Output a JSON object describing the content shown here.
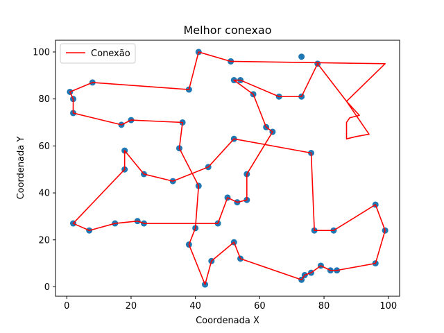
{
  "chart_data": {
    "type": "line",
    "title": "Melhor conexao",
    "xlabel": "Coordenada X",
    "ylabel": "Coordenada Y",
    "xlim": [
      -3.5,
      103.5
    ],
    "ylim": [
      -4,
      105
    ],
    "xticks": [
      0,
      20,
      40,
      60,
      80,
      100
    ],
    "yticks": [
      0,
      20,
      40,
      60,
      80,
      100
    ],
    "grid": false,
    "legend": {
      "placement": "top-left",
      "entries": [
        "Conexão"
      ]
    },
    "colors": {
      "line": "#ff0000",
      "points": "#1f77b4"
    },
    "points": [
      [
        51,
        96
      ],
      [
        41,
        100
      ],
      [
        38,
        84
      ],
      [
        8,
        87
      ],
      [
        1,
        83
      ],
      [
        2,
        80
      ],
      [
        2,
        74
      ],
      [
        17,
        69
      ],
      [
        20,
        71
      ],
      [
        36,
        70
      ],
      [
        35,
        59
      ],
      [
        41,
        43
      ],
      [
        40,
        25
      ],
      [
        38,
        18
      ],
      [
        43,
        1
      ],
      [
        45,
        11
      ],
      [
        52,
        19
      ],
      [
        54,
        12
      ],
      [
        73,
        3
      ],
      [
        74,
        5
      ],
      [
        76,
        6
      ],
      [
        79,
        9
      ],
      [
        82,
        7
      ],
      [
        84,
        7
      ],
      [
        96,
        10
      ],
      [
        99,
        24
      ],
      [
        96,
        35
      ],
      [
        83,
        24
      ],
      [
        77,
        24
      ],
      [
        76,
        57
      ],
      [
        52,
        63
      ],
      [
        44,
        51
      ],
      [
        33,
        45
      ],
      [
        24,
        48
      ],
      [
        18,
        50
      ],
      [
        18,
        58
      ],
      [
        2,
        27
      ],
      [
        7,
        24
      ],
      [
        15,
        27
      ],
      [
        22,
        28
      ],
      [
        24,
        27
      ],
      [
        47,
        27
      ],
      [
        50,
        38
      ],
      [
        53,
        36
      ],
      [
        56,
        37
      ],
      [
        56,
        48
      ],
      [
        64,
        66
      ],
      [
        62,
        68
      ],
      [
        58,
        82
      ],
      [
        54,
        88
      ],
      [
        52,
        88
      ],
      [
        66,
        81
      ],
      [
        73,
        81
      ],
      [
        78,
        95
      ],
      [
        73,
        98
      ],
      [
        51,
        96
      ]
    ],
    "path": [
      [
        51,
        96
      ],
      [
        99,
        95
      ],
      [
        87,
        79
      ],
      [
        94,
        65
      ],
      [
        90,
        64
      ],
      [
        87,
        63
      ],
      [
        87,
        70
      ],
      [
        88,
        72
      ],
      [
        91,
        73
      ],
      [
        87,
        79
      ],
      [
        78,
        95
      ],
      [
        73,
        81
      ],
      [
        66,
        81
      ],
      [
        54,
        88
      ],
      [
        52,
        88
      ],
      [
        58,
        82
      ],
      [
        62,
        68
      ],
      [
        64,
        66
      ],
      [
        56,
        48
      ],
      [
        56,
        37
      ],
      [
        53,
        36
      ],
      [
        50,
        38
      ],
      [
        47,
        27
      ],
      [
        24,
        27
      ],
      [
        22,
        28
      ],
      [
        15,
        27
      ],
      [
        7,
        24
      ],
      [
        2,
        27
      ],
      [
        18,
        50
      ],
      [
        18,
        58
      ],
      [
        24,
        48
      ],
      [
        33,
        45
      ],
      [
        44,
        51
      ],
      [
        52,
        63
      ],
      [
        76,
        57
      ],
      [
        77,
        24
      ],
      [
        83,
        24
      ],
      [
        96,
        35
      ],
      [
        99,
        24
      ],
      [
        96,
        10
      ],
      [
        84,
        7
      ],
      [
        82,
        7
      ],
      [
        79,
        9
      ],
      [
        76,
        6
      ],
      [
        74,
        5
      ],
      [
        73,
        3
      ],
      [
        54,
        12
      ],
      [
        52,
        19
      ],
      [
        45,
        11
      ],
      [
        43,
        1
      ],
      [
        38,
        18
      ],
      [
        40,
        25
      ],
      [
        41,
        43
      ],
      [
        35,
        59
      ],
      [
        36,
        70
      ],
      [
        20,
        71
      ],
      [
        17,
        69
      ],
      [
        2,
        74
      ],
      [
        2,
        80
      ],
      [
        1,
        83
      ],
      [
        8,
        87
      ],
      [
        38,
        84
      ],
      [
        41,
        100
      ],
      [
        51,
        96
      ]
    ]
  }
}
